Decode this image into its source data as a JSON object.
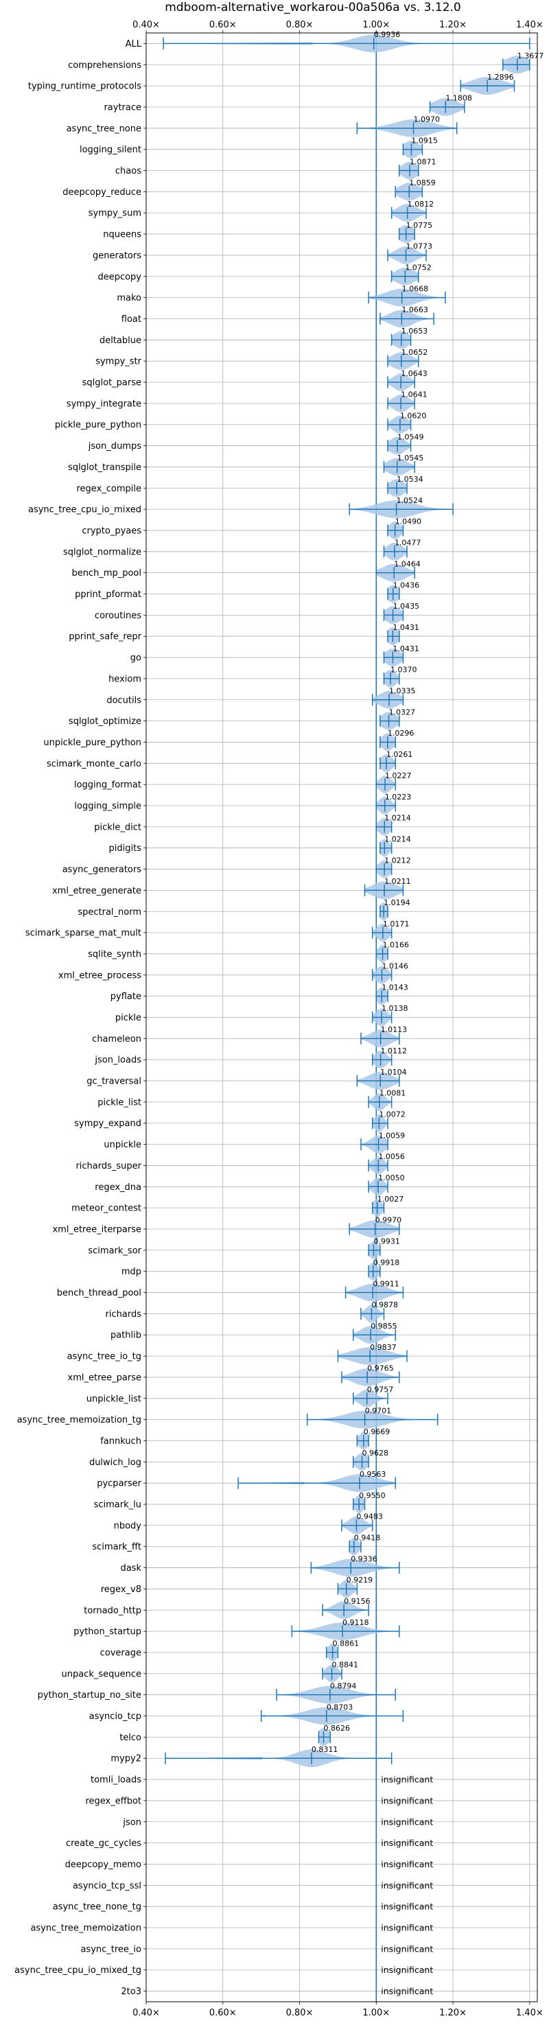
{
  "chart_data": {
    "type": "violin",
    "title": "mdboom-alternative_workarou-00a506a vs. 3.12.0",
    "xlim": [
      0.4,
      1.42
    ],
    "x_ticks": [
      0.4,
      0.6,
      0.8,
      1.0,
      1.2,
      1.4
    ],
    "x_tick_labels": [
      "0.40×",
      "0.60×",
      "0.80×",
      "1.00×",
      "1.20×",
      "1.40×"
    ],
    "reference_line": 1.0,
    "grid": true,
    "colors": {
      "violin": "#a9c8e8",
      "whisker": "#1f77b4",
      "ref_line": "#1f77b4"
    },
    "rows": [
      {
        "name": "ALL",
        "mean": 0.9936,
        "label": "0.9936",
        "min": 0.445,
        "max": 1.4,
        "spread": 0.05
      },
      {
        "name": "comprehensions",
        "mean": 1.3677,
        "label": "1.3677",
        "min": 1.33,
        "max": 1.4,
        "spread": 0.03
      },
      {
        "name": "typing_runtime_protocols",
        "mean": 1.2896,
        "label": "1.2896",
        "min": 1.22,
        "max": 1.36,
        "spread": 0.04
      },
      {
        "name": "raytrace",
        "mean": 1.1808,
        "label": "1.1808",
        "min": 1.14,
        "max": 1.23,
        "spread": 0.03
      },
      {
        "name": "async_tree_none",
        "mean": 1.097,
        "label": "1.0970",
        "min": 0.95,
        "max": 1.21,
        "spread": 0.05
      },
      {
        "name": "logging_silent",
        "mean": 1.0915,
        "label": "1.0915",
        "min": 1.07,
        "max": 1.12,
        "spread": 0.02
      },
      {
        "name": "chaos",
        "mean": 1.0871,
        "label": "1.0871",
        "min": 1.06,
        "max": 1.11,
        "spread": 0.02
      },
      {
        "name": "deepcopy_reduce",
        "mean": 1.0859,
        "label": "1.0859",
        "min": 1.05,
        "max": 1.12,
        "spread": 0.025
      },
      {
        "name": "sympy_sum",
        "mean": 1.0812,
        "label": "1.0812",
        "min": 1.04,
        "max": 1.13,
        "spread": 0.025
      },
      {
        "name": "nqueens",
        "mean": 1.0775,
        "label": "1.0775",
        "min": 1.06,
        "max": 1.1,
        "spread": 0.02
      },
      {
        "name": "generators",
        "mean": 1.0773,
        "label": "1.0773",
        "min": 1.03,
        "max": 1.13,
        "spread": 0.025
      },
      {
        "name": "deepcopy",
        "mean": 1.0752,
        "label": "1.0752",
        "min": 1.04,
        "max": 1.11,
        "spread": 0.025
      },
      {
        "name": "mako",
        "mean": 1.0668,
        "label": "1.0668",
        "min": 0.98,
        "max": 1.18,
        "spread": 0.04
      },
      {
        "name": "float",
        "mean": 1.0663,
        "label": "1.0663",
        "min": 1.01,
        "max": 1.15,
        "spread": 0.03
      },
      {
        "name": "deltablue",
        "mean": 1.0653,
        "label": "1.0653",
        "min": 1.04,
        "max": 1.09,
        "spread": 0.02
      },
      {
        "name": "sympy_str",
        "mean": 1.0652,
        "label": "1.0652",
        "min": 1.03,
        "max": 1.11,
        "spread": 0.025
      },
      {
        "name": "sqlglot_parse",
        "mean": 1.0643,
        "label": "1.0643",
        "min": 1.03,
        "max": 1.1,
        "spread": 0.02
      },
      {
        "name": "sympy_integrate",
        "mean": 1.0641,
        "label": "1.0641",
        "min": 1.03,
        "max": 1.1,
        "spread": 0.02
      },
      {
        "name": "pickle_pure_python",
        "mean": 1.062,
        "label": "1.0620",
        "min": 1.03,
        "max": 1.09,
        "spread": 0.02
      },
      {
        "name": "json_dumps",
        "mean": 1.0549,
        "label": "1.0549",
        "min": 1.03,
        "max": 1.09,
        "spread": 0.02
      },
      {
        "name": "sqlglot_transpile",
        "mean": 1.0545,
        "label": "1.0545",
        "min": 1.02,
        "max": 1.1,
        "spread": 0.025
      },
      {
        "name": "regex_compile",
        "mean": 1.0534,
        "label": "1.0534",
        "min": 1.03,
        "max": 1.08,
        "spread": 0.02
      },
      {
        "name": "async_tree_cpu_io_mixed",
        "mean": 1.0524,
        "label": "1.0524",
        "min": 0.93,
        "max": 1.2,
        "spread": 0.05
      },
      {
        "name": "crypto_pyaes",
        "mean": 1.049,
        "label": "1.0490",
        "min": 1.03,
        "max": 1.07,
        "spread": 0.015
      },
      {
        "name": "sqlglot_normalize",
        "mean": 1.0477,
        "label": "1.0477",
        "min": 1.02,
        "max": 1.08,
        "spread": 0.02
      },
      {
        "name": "bench_mp_pool",
        "mean": 1.0464,
        "label": "1.0464",
        "min": 1.0,
        "max": 1.1,
        "spread": 0.03
      },
      {
        "name": "pprint_pformat",
        "mean": 1.0436,
        "label": "1.0436",
        "min": 1.03,
        "max": 1.06,
        "spread": 0.015
      },
      {
        "name": "coroutines",
        "mean": 1.0435,
        "label": "1.0435",
        "min": 1.02,
        "max": 1.07,
        "spread": 0.02
      },
      {
        "name": "pprint_safe_repr",
        "mean": 1.0431,
        "label": "1.0431",
        "min": 1.03,
        "max": 1.06,
        "spread": 0.015
      },
      {
        "name": "go",
        "mean": 1.0431,
        "label": "1.0431",
        "min": 1.02,
        "max": 1.07,
        "spread": 0.02
      },
      {
        "name": "hexiom",
        "mean": 1.037,
        "label": "1.0370",
        "min": 1.02,
        "max": 1.06,
        "spread": 0.015
      },
      {
        "name": "docutils",
        "mean": 1.0335,
        "label": "1.0335",
        "min": 0.99,
        "max": 1.07,
        "spread": 0.025
      },
      {
        "name": "sqlglot_optimize",
        "mean": 1.0327,
        "label": "1.0327",
        "min": 1.01,
        "max": 1.06,
        "spread": 0.02
      },
      {
        "name": "unpickle_pure_python",
        "mean": 1.0296,
        "label": "1.0296",
        "min": 1.01,
        "max": 1.05,
        "spread": 0.015
      },
      {
        "name": "scimark_monte_carlo",
        "mean": 1.0261,
        "label": "1.0261",
        "min": 1.01,
        "max": 1.05,
        "spread": 0.015
      },
      {
        "name": "logging_format",
        "mean": 1.0227,
        "label": "1.0227",
        "min": 1.0,
        "max": 1.05,
        "spread": 0.015
      },
      {
        "name": "logging_simple",
        "mean": 1.0223,
        "label": "1.0223",
        "min": 1.0,
        "max": 1.05,
        "spread": 0.015
      },
      {
        "name": "pickle_dict",
        "mean": 1.0214,
        "label": "1.0214",
        "min": 1.0,
        "max": 1.04,
        "spread": 0.015
      },
      {
        "name": "pidigits",
        "mean": 1.0214,
        "label": "1.0214",
        "min": 1.01,
        "max": 1.04,
        "spread": 0.012
      },
      {
        "name": "async_generators",
        "mean": 1.0212,
        "label": "1.0212",
        "min": 1.0,
        "max": 1.04,
        "spread": 0.015
      },
      {
        "name": "xml_etree_generate",
        "mean": 1.0211,
        "label": "1.0211",
        "min": 0.97,
        "max": 1.07,
        "spread": 0.03
      },
      {
        "name": "spectral_norm",
        "mean": 1.0194,
        "label": "1.0194",
        "min": 1.01,
        "max": 1.03,
        "spread": 0.012
      },
      {
        "name": "scimark_sparse_mat_mult",
        "mean": 1.0171,
        "label": "1.0171",
        "min": 0.99,
        "max": 1.04,
        "spread": 0.015
      },
      {
        "name": "sqlite_synth",
        "mean": 1.0166,
        "label": "1.0166",
        "min": 1.0,
        "max": 1.03,
        "spread": 0.012
      },
      {
        "name": "xml_etree_process",
        "mean": 1.0146,
        "label": "1.0146",
        "min": 0.99,
        "max": 1.04,
        "spread": 0.015
      },
      {
        "name": "pyflate",
        "mean": 1.0143,
        "label": "1.0143",
        "min": 1.0,
        "max": 1.03,
        "spread": 0.012
      },
      {
        "name": "pickle",
        "mean": 1.0138,
        "label": "1.0138",
        "min": 0.99,
        "max": 1.04,
        "spread": 0.015
      },
      {
        "name": "chameleon",
        "mean": 1.0113,
        "label": "1.0113",
        "min": 0.96,
        "max": 1.06,
        "spread": 0.025
      },
      {
        "name": "json_loads",
        "mean": 1.0112,
        "label": "1.0112",
        "min": 0.99,
        "max": 1.04,
        "spread": 0.015
      },
      {
        "name": "gc_traversal",
        "mean": 1.0104,
        "label": "1.0104",
        "min": 0.95,
        "max": 1.06,
        "spread": 0.03
      },
      {
        "name": "pickle_list",
        "mean": 1.0081,
        "label": "1.0081",
        "min": 0.98,
        "max": 1.04,
        "spread": 0.015
      },
      {
        "name": "sympy_expand",
        "mean": 1.0072,
        "label": "1.0072",
        "min": 0.99,
        "max": 1.03,
        "spread": 0.012
      },
      {
        "name": "unpickle",
        "mean": 1.0059,
        "label": "1.0059",
        "min": 0.96,
        "max": 1.03,
        "spread": 0.02
      },
      {
        "name": "richards_super",
        "mean": 1.0056,
        "label": "1.0056",
        "min": 0.98,
        "max": 1.03,
        "spread": 0.015
      },
      {
        "name": "regex_dna",
        "mean": 1.005,
        "label": "1.0050",
        "min": 0.98,
        "max": 1.03,
        "spread": 0.015
      },
      {
        "name": "meteor_contest",
        "mean": 1.0027,
        "label": "1.0027",
        "min": 0.99,
        "max": 1.02,
        "spread": 0.012
      },
      {
        "name": "xml_etree_iterparse",
        "mean": 0.997,
        "label": "0.9970",
        "min": 0.93,
        "max": 1.06,
        "spread": 0.035
      },
      {
        "name": "scimark_sor",
        "mean": 0.9931,
        "label": "0.9931",
        "min": 0.98,
        "max": 1.01,
        "spread": 0.012
      },
      {
        "name": "mdp",
        "mean": 0.9918,
        "label": "0.9918",
        "min": 0.98,
        "max": 1.01,
        "spread": 0.012
      },
      {
        "name": "bench_thread_pool",
        "mean": 0.9911,
        "label": "0.9911",
        "min": 0.92,
        "max": 1.07,
        "spread": 0.035
      },
      {
        "name": "richards",
        "mean": 0.9878,
        "label": "0.9878",
        "min": 0.96,
        "max": 1.02,
        "spread": 0.015
      },
      {
        "name": "pathlib",
        "mean": 0.9855,
        "label": "0.9855",
        "min": 0.94,
        "max": 1.05,
        "spread": 0.025
      },
      {
        "name": "async_tree_io_tg",
        "mean": 0.9837,
        "label": "0.9837",
        "min": 0.9,
        "max": 1.08,
        "spread": 0.045
      },
      {
        "name": "xml_etree_parse",
        "mean": 0.9765,
        "label": "0.9765",
        "min": 0.91,
        "max": 1.06,
        "spread": 0.035
      },
      {
        "name": "unpickle_list",
        "mean": 0.9757,
        "label": "0.9757",
        "min": 0.94,
        "max": 1.03,
        "spread": 0.02
      },
      {
        "name": "async_tree_memoization_tg",
        "mean": 0.9701,
        "label": "0.9701",
        "min": 0.82,
        "max": 1.16,
        "spread": 0.05
      },
      {
        "name": "fannkuch",
        "mean": 0.9669,
        "label": "0.9669",
        "min": 0.95,
        "max": 0.98,
        "spread": 0.012
      },
      {
        "name": "dulwich_log",
        "mean": 0.9628,
        "label": "0.9628",
        "min": 0.94,
        "max": 0.98,
        "spread": 0.015
      },
      {
        "name": "pycparser",
        "mean": 0.9563,
        "label": "0.9563",
        "min": 0.64,
        "max": 1.05,
        "spread": 0.045
      },
      {
        "name": "scimark_lu",
        "mean": 0.955,
        "label": "0.9550",
        "min": 0.94,
        "max": 0.97,
        "spread": 0.012
      },
      {
        "name": "nbody",
        "mean": 0.9483,
        "label": "0.9483",
        "min": 0.91,
        "max": 0.99,
        "spread": 0.02
      },
      {
        "name": "scimark_fft",
        "mean": 0.9418,
        "label": "0.9418",
        "min": 0.93,
        "max": 0.96,
        "spread": 0.012
      },
      {
        "name": "dask",
        "mean": 0.9336,
        "label": "0.9336",
        "min": 0.83,
        "max": 1.06,
        "spread": 0.045
      },
      {
        "name": "regex_v8",
        "mean": 0.9219,
        "label": "0.9219",
        "min": 0.9,
        "max": 0.95,
        "spread": 0.015
      },
      {
        "name": "tornado_http",
        "mean": 0.9156,
        "label": "0.9156",
        "min": 0.86,
        "max": 0.98,
        "spread": 0.025
      },
      {
        "name": "python_startup",
        "mean": 0.9118,
        "label": "0.9118",
        "min": 0.78,
        "max": 1.06,
        "spread": 0.05
      },
      {
        "name": "coverage",
        "mean": 0.8861,
        "label": "0.8861",
        "min": 0.87,
        "max": 0.9,
        "spread": 0.012
      },
      {
        "name": "unpack_sequence",
        "mean": 0.8841,
        "label": "0.8841",
        "min": 0.86,
        "max": 0.91,
        "spread": 0.015
      },
      {
        "name": "python_startup_no_site",
        "mean": 0.8794,
        "label": "0.8794",
        "min": 0.74,
        "max": 1.05,
        "spread": 0.05
      },
      {
        "name": "asyncio_tcp",
        "mean": 0.8703,
        "label": "0.8703",
        "min": 0.7,
        "max": 1.07,
        "spread": 0.05
      },
      {
        "name": "telco",
        "mean": 0.8626,
        "label": "0.8626",
        "min": 0.85,
        "max": 0.88,
        "spread": 0.015
      },
      {
        "name": "mypy2",
        "mean": 0.8311,
        "label": "0.8311",
        "min": 0.45,
        "max": 1.04,
        "spread": 0.04
      },
      {
        "name": "tomli_loads",
        "insignificant": true
      },
      {
        "name": "regex_effbot",
        "insignificant": true
      },
      {
        "name": "json",
        "insignificant": true
      },
      {
        "name": "create_gc_cycles",
        "insignificant": true
      },
      {
        "name": "deepcopy_memo",
        "insignificant": true
      },
      {
        "name": "asyncio_tcp_ssl",
        "insignificant": true
      },
      {
        "name": "async_tree_none_tg",
        "insignificant": true
      },
      {
        "name": "async_tree_memoization",
        "insignificant": true
      },
      {
        "name": "async_tree_io",
        "insignificant": true
      },
      {
        "name": "async_tree_cpu_io_mixed_tg",
        "insignificant": true
      },
      {
        "name": "2to3",
        "insignificant": true
      }
    ],
    "insignificant_label": "insignificant"
  }
}
